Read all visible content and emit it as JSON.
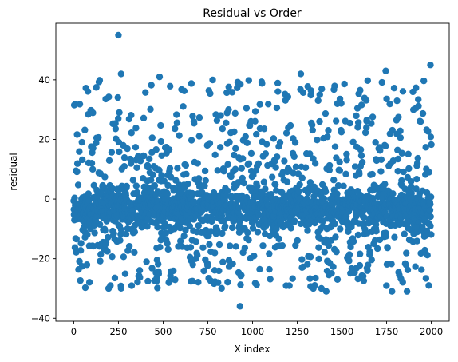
{
  "chart_data": {
    "type": "scatter",
    "title": "Residual vs Order",
    "xlabel": "X index",
    "ylabel": "residual",
    "xlim": [
      -100,
      2100
    ],
    "ylim": [
      -41,
      59
    ],
    "xticks": [
      0,
      250,
      500,
      750,
      1000,
      1250,
      1500,
      1750,
      2000
    ],
    "yticks": [
      -40,
      -20,
      0,
      20,
      40
    ],
    "grid": false,
    "color": "#1f77b4",
    "n_points": 2001,
    "x_range": [
      0,
      2000
    ],
    "notable_points": [
      {
        "x": 250,
        "y": 55
      },
      {
        "x": 1995,
        "y": 45
      },
      {
        "x": 930,
        "y": -36
      },
      {
        "x": 1745,
        "y": 43
      },
      {
        "x": 1270,
        "y": 42
      },
      {
        "x": 265,
        "y": 42
      },
      {
        "x": 480,
        "y": 41
      },
      {
        "x": 195,
        "y": -30
      },
      {
        "x": 1340,
        "y": -30
      },
      {
        "x": 1385,
        "y": -30
      }
    ]
  }
}
